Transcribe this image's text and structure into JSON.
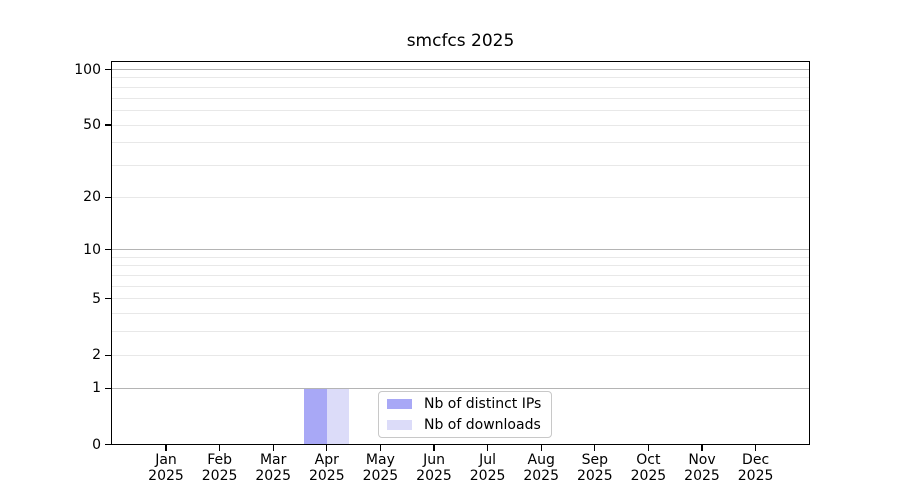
{
  "title": "smcfcs 2025",
  "chart_data": {
    "type": "bar",
    "title": "smcfcs 2025",
    "x_ticks": [
      {
        "label": "Jan",
        "year": "2025"
      },
      {
        "label": "Feb",
        "year": "2025"
      },
      {
        "label": "Mar",
        "year": "2025"
      },
      {
        "label": "Apr",
        "year": "2025"
      },
      {
        "label": "May",
        "year": "2025"
      },
      {
        "label": "Jun",
        "year": "2025"
      },
      {
        "label": "Jul",
        "year": "2025"
      },
      {
        "label": "Aug",
        "year": "2025"
      },
      {
        "label": "Sep",
        "year": "2025"
      },
      {
        "label": "Oct",
        "year": "2025"
      },
      {
        "label": "Nov",
        "year": "2025"
      },
      {
        "label": "Dec",
        "year": "2025"
      }
    ],
    "series": [
      {
        "name": "Nb of distinct IPs",
        "color": "#a8a8f6",
        "values": [
          0,
          0,
          0,
          1,
          0,
          0,
          0,
          0,
          0,
          0,
          0,
          0
        ]
      },
      {
        "name": "Nb of downloads",
        "color": "#dcdcf9",
        "values": [
          0,
          0,
          0,
          1,
          0,
          0,
          0,
          0,
          0,
          0,
          0,
          0
        ]
      }
    ],
    "y_scale": "log10(1+v)",
    "ylim": [
      0,
      100
    ],
    "y_tick_values": [
      0,
      1,
      2,
      5,
      10,
      20,
      50,
      100
    ],
    "y_tick_labels": [
      "0",
      "1",
      "2",
      "5",
      "10",
      "20",
      "50",
      "100"
    ],
    "y_major_gridlines": [
      1,
      10,
      100
    ],
    "y_minor_gridlines": [
      2,
      3,
      4,
      5,
      6,
      7,
      8,
      9,
      20,
      30,
      40,
      50,
      60,
      70,
      80,
      90
    ],
    "grid": true,
    "legend_position": "bottom-center",
    "colors": {
      "grid_minor": "#e8e8e8",
      "grid_major": "#b4b4b4",
      "spine": "#000000",
      "text": "#000000",
      "background": "#ffffff"
    }
  }
}
